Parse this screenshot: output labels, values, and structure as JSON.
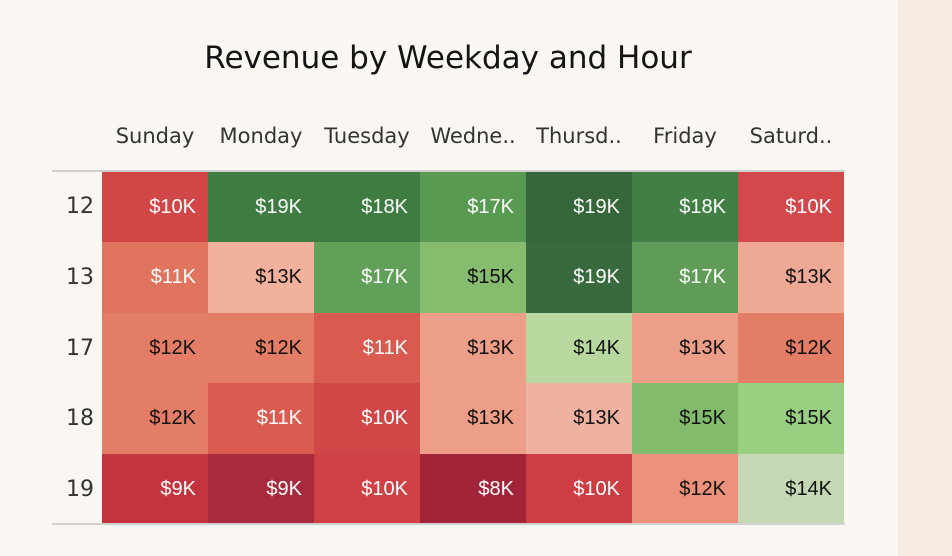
{
  "chart_data": {
    "type": "heatmap",
    "title": "Revenue by Weekday and Hour",
    "columns": [
      "Sunday",
      "Monday",
      "Tuesday",
      "Wedne..",
      "Thursd..",
      "Friday",
      "Saturd.."
    ],
    "rows": [
      "12",
      "13",
      "17",
      "18",
      "19"
    ],
    "values": [
      [
        10,
        19,
        18,
        17,
        19,
        18,
        10
      ],
      [
        11,
        13,
        17,
        15,
        19,
        17,
        13
      ],
      [
        12,
        12,
        11,
        13,
        14,
        13,
        12
      ],
      [
        12,
        11,
        10,
        13,
        13,
        15,
        15
      ],
      [
        9,
        9,
        10,
        8,
        10,
        12,
        14
      ]
    ],
    "labels": [
      [
        "$10K",
        "$19K",
        "$18K",
        "$17K",
        "$19K",
        "$18K",
        "$10K"
      ],
      [
        "$11K",
        "$13K",
        "$17K",
        "$15K",
        "$19K",
        "$17K",
        "$13K"
      ],
      [
        "$12K",
        "$12K",
        "$11K",
        "$13K",
        "$14K",
        "$13K",
        "$12K"
      ],
      [
        "$12K",
        "$11K",
        "$10K",
        "$13K",
        "$13K",
        "$15K",
        "$15K"
      ],
      [
        "$9K",
        "$9K",
        "$10K",
        "$8K",
        "$10K",
        "$12K",
        "$14K"
      ]
    ],
    "colors": [
      [
        "#d14646",
        "#3f7c42",
        "#3f7c42",
        "#589a52",
        "#35673b",
        "#427f44",
        "#d1494a"
      ],
      [
        "#e1745e",
        "#f2b19d",
        "#61a058",
        "#86bc6e",
        "#386a3d",
        "#5f9c58",
        "#eea994"
      ],
      [
        "#e47d65",
        "#e47d65",
        "#d95b4f",
        "#ec9e88",
        "#b8d8a0",
        "#ec9e88",
        "#e47d65"
      ],
      [
        "#e47d65",
        "#da5c50",
        "#d14646",
        "#ec9e88",
        "#f0b2a0",
        "#83bb6c",
        "#99cf80"
      ],
      [
        "#c3343f",
        "#a72b3c",
        "#cf4145",
        "#a22439",
        "#cc3d44",
        "#ec917a",
        "#c4d9b3"
      ]
    ],
    "text_colors": [
      [
        "#ffffff",
        "#ffffff",
        "#ffffff",
        "#ffffff",
        "#ffffff",
        "#ffffff",
        "#ffffff"
      ],
      [
        "#ffffff",
        "#111111",
        "#ffffff",
        "#111111",
        "#ffffff",
        "#ffffff",
        "#111111"
      ],
      [
        "#111111",
        "#111111",
        "#ffffff",
        "#111111",
        "#111111",
        "#111111",
        "#111111"
      ],
      [
        "#111111",
        "#ffffff",
        "#ffffff",
        "#111111",
        "#111111",
        "#111111",
        "#111111"
      ],
      [
        "#ffffff",
        "#ffffff",
        "#ffffff",
        "#ffffff",
        "#ffffff",
        "#111111",
        "#111111"
      ]
    ],
    "unit": "$K"
  }
}
